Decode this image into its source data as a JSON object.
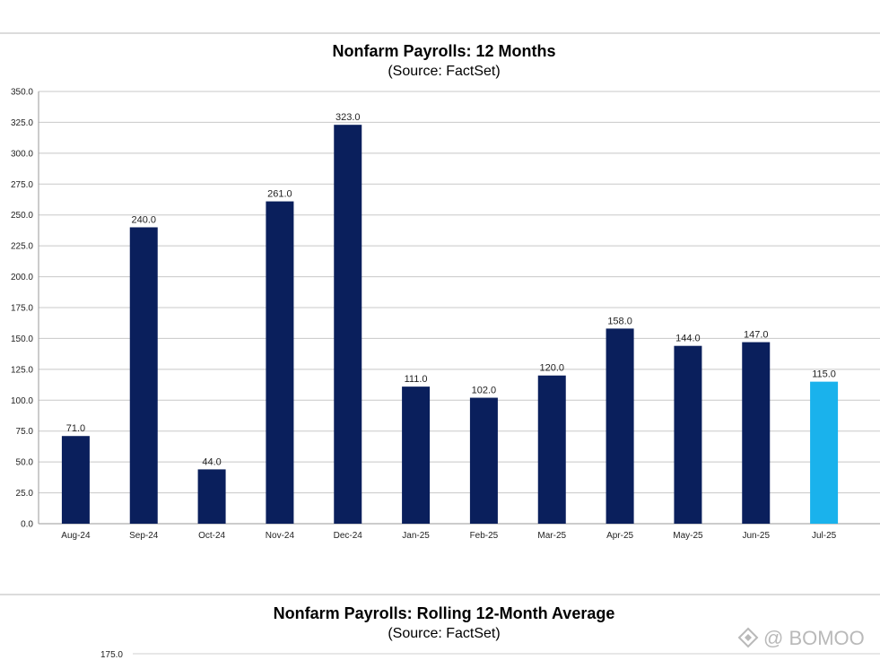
{
  "chart_data": [
    {
      "type": "bar",
      "title": "Nonfarm Payrolls: 12 Months",
      "subtitle": "(Source: FactSet)",
      "categories": [
        "Aug-24",
        "Sep-24",
        "Oct-24",
        "Nov-24",
        "Dec-24",
        "Jan-25",
        "Feb-25",
        "Mar-25",
        "Apr-25",
        "May-25",
        "Jun-25",
        "Jul-25"
      ],
      "values": [
        71.0,
        240.0,
        44.0,
        261.0,
        323.0,
        111.0,
        102.0,
        120.0,
        158.0,
        144.0,
        147.0,
        115.0
      ],
      "data_labels": [
        "71.0",
        "240.0",
        "44.0",
        "261.0",
        "323.0",
        "111.0",
        "102.0",
        "120.0",
        "158.0",
        "144.0",
        "147.0",
        "115.0"
      ],
      "ylim": [
        0,
        350
      ],
      "yticks": [
        "0.0",
        "25.0",
        "50.0",
        "75.0",
        "100.0",
        "125.0",
        "150.0",
        "175.0",
        "200.0",
        "225.0",
        "250.0",
        "275.0",
        "300.0",
        "325.0",
        "350.0"
      ],
      "grid": true,
      "bar_color": "#0a1f5c",
      "highlight_color": "#1ab2ec",
      "highlight_index": 11
    },
    {
      "type": "line",
      "title": "Nonfarm Payrolls: Rolling 12-Month Average",
      "subtitle": "(Source: FactSet)",
      "yticks": [
        "175.0"
      ]
    }
  ],
  "watermark": {
    "icon": "diamond-logo-icon",
    "text": "@ BOMOO",
    "color": "#b9b9b9"
  }
}
